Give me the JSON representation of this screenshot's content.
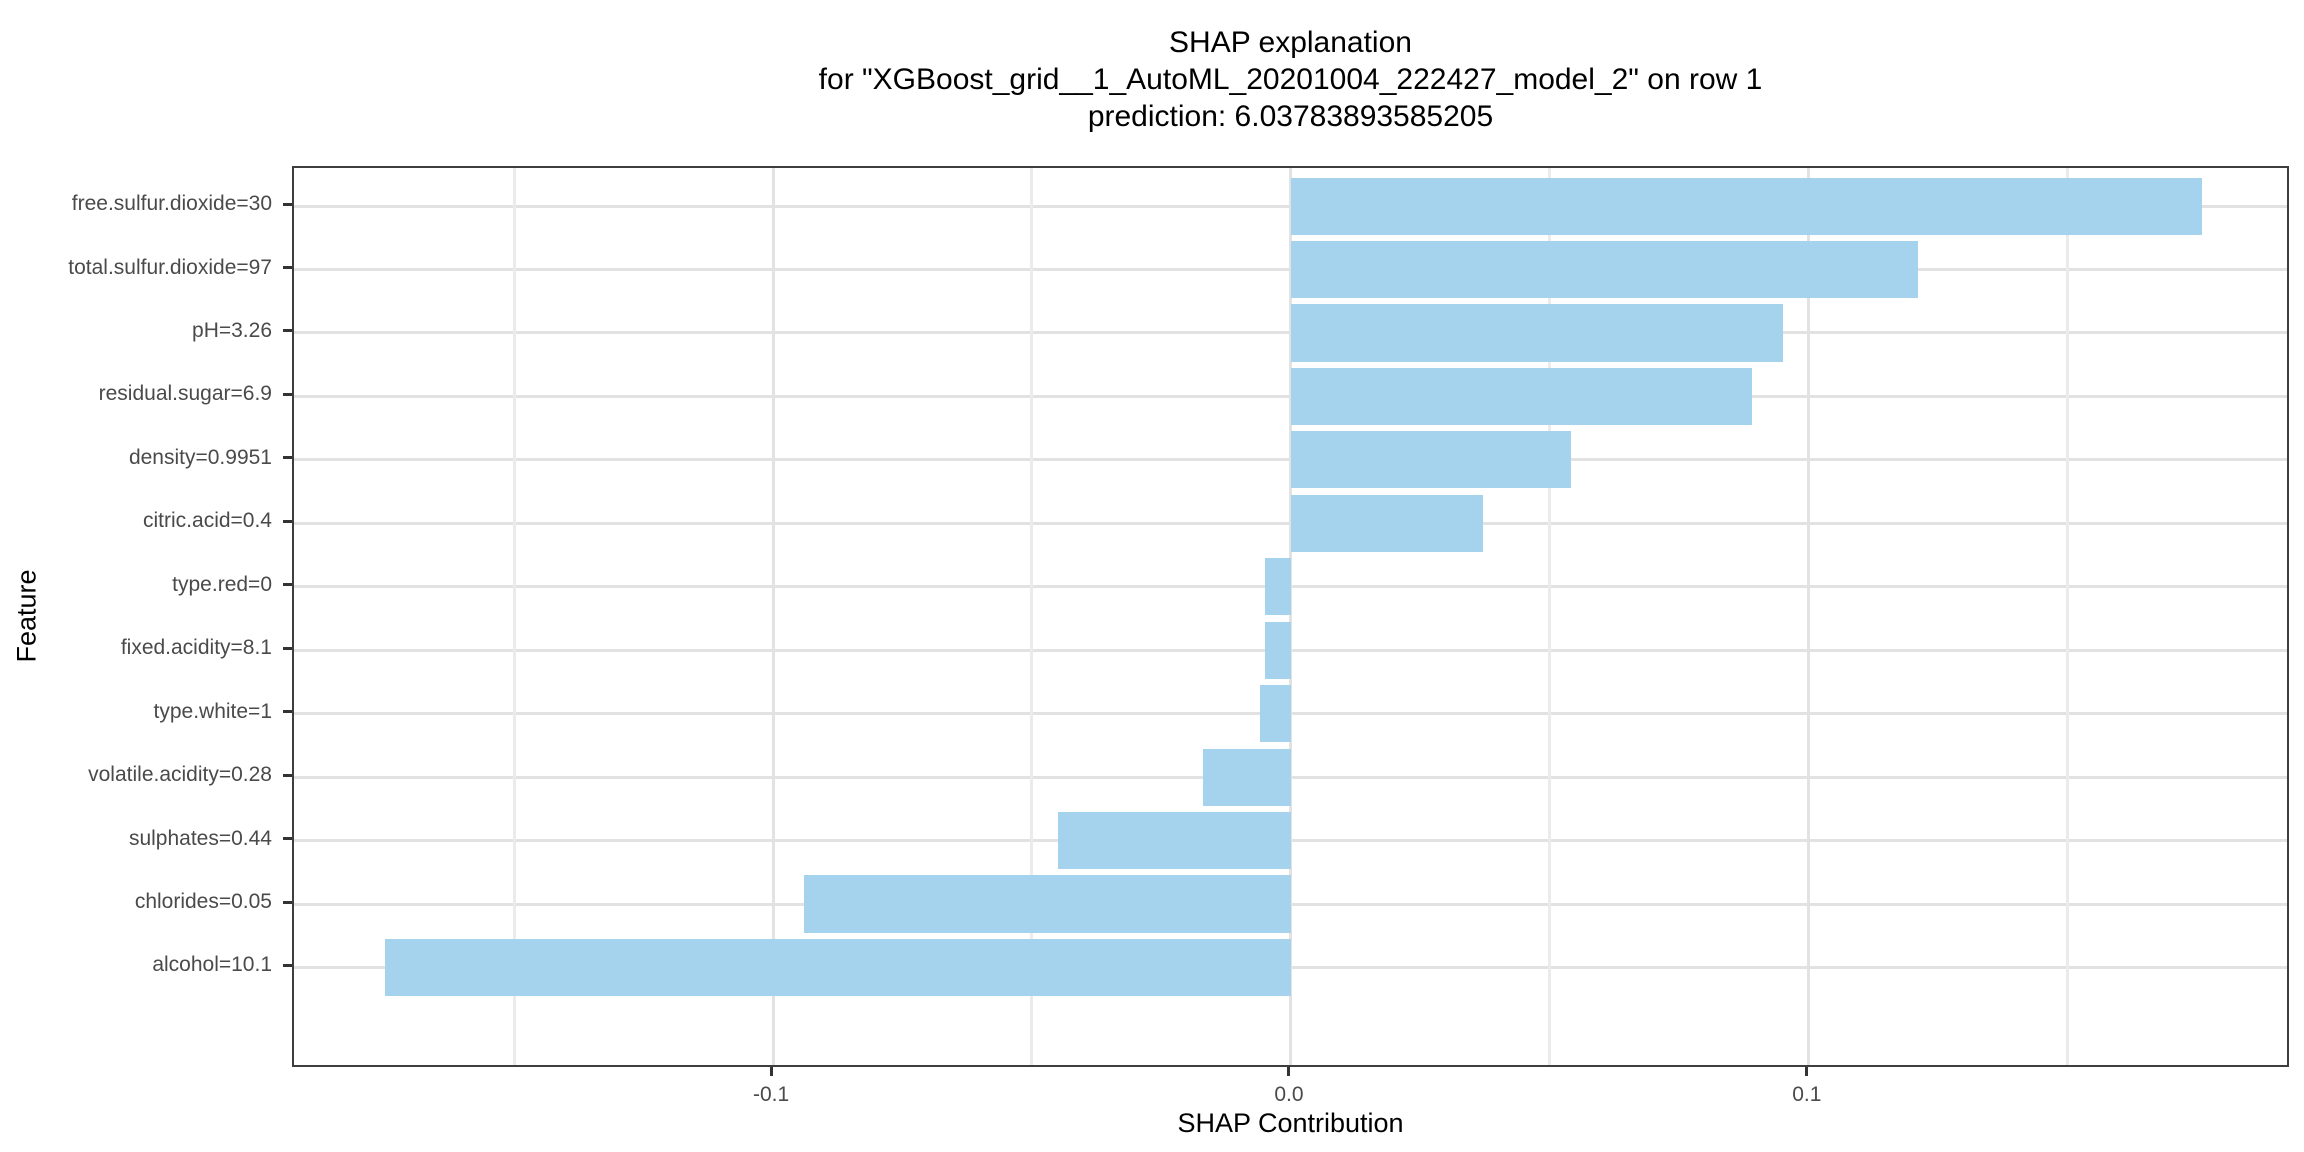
{
  "figure": {
    "title_lines": [
      "SHAP explanation",
      "for \"XGBoost_grid__1_AutoML_20201004_222427_model_2\" on row 1",
      "prediction: 6.03783893585205"
    ]
  },
  "chart_data": {
    "type": "bar",
    "orientation": "horizontal",
    "title": "SHAP explanation",
    "subtitle": "for \"XGBoost_grid__1_AutoML_20201004_222427_model_2\" on row 1",
    "annotation": "prediction: 6.03783893585205",
    "xlabel": "SHAP Contribution",
    "ylabel": "Feature",
    "categories": [
      "free.sulfur.dioxide=30",
      "total.sulfur.dioxide=97",
      "pH=3.26",
      "residual.sugar=6.9",
      "density=0.9951",
      "citric.acid=0.4",
      "type.red=0",
      "fixed.acidity=8.1",
      "type.white=1",
      "volatile.acidity=0.28",
      "sulphates=0.44",
      "chlorides=0.05",
      "alcohol=10.1"
    ],
    "values": [
      0.176,
      0.121,
      0.095,
      0.089,
      0.054,
      0.037,
      -0.005,
      -0.005,
      -0.006,
      -0.017,
      -0.045,
      -0.094,
      -0.175
    ],
    "xlim": [
      -0.1925,
      0.1931
    ],
    "x_ticks": {
      "values": [
        -0.1,
        0.0,
        0.1
      ],
      "labels": [
        "-0.1",
        "0.0",
        "0.1"
      ]
    },
    "x_minor_grid": [
      -0.15,
      -0.05,
      0.05,
      0.15
    ],
    "grid": true,
    "legend": false,
    "sort": "by absolute contribution, descending top to bottom"
  },
  "style": {
    "bar_color": "#A5D3ED",
    "grid_major_color": "#E2E2E2",
    "grid_minor_color": "#EBEBEB",
    "panel_border_color": "#3E3E3E",
    "axis_text_color": "#4A4A4A",
    "tick_mark_color": "#333333",
    "title_color": "#000000",
    "background_color": "#FFFFFF"
  }
}
